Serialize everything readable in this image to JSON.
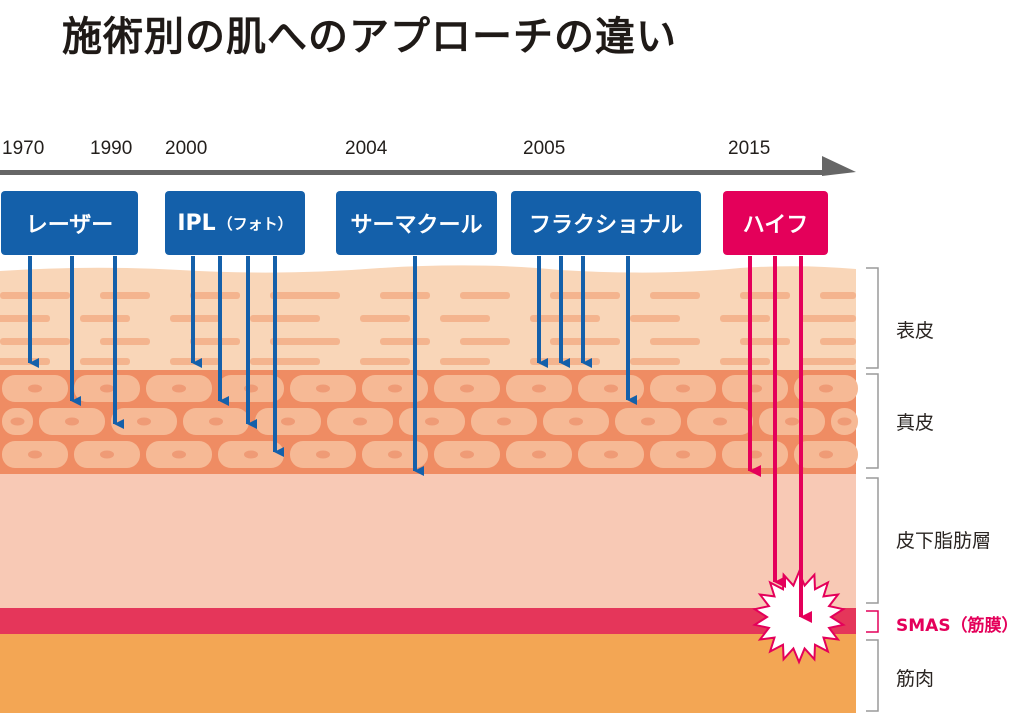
{
  "title": "施術別の肌へのアプローチの違い",
  "timeline": {
    "years": [
      {
        "id": "y1970",
        "label": "1970"
      },
      {
        "id": "y1990",
        "label": "1990"
      },
      {
        "id": "y2000",
        "label": "2000"
      },
      {
        "id": "y2004",
        "label": "2004"
      },
      {
        "id": "y2005",
        "label": "2005"
      },
      {
        "id": "y2015",
        "label": "2015"
      }
    ]
  },
  "treatments": [
    {
      "id": "laser",
      "label": "レーザー",
      "color": "#1460aa",
      "reaches": "真皮"
    },
    {
      "id": "ipl",
      "label": "IPL",
      "sub": "（フォト）",
      "color": "#1460aa",
      "reaches": "真皮"
    },
    {
      "id": "thermacool",
      "label": "サーマクール",
      "color": "#1460aa",
      "reaches": "真皮"
    },
    {
      "id": "fractional",
      "label": "フラクショナル",
      "color": "#1460aa",
      "reaches": "真皮"
    },
    {
      "id": "hifu",
      "label": "ハイフ",
      "color": "#e4005a",
      "reaches": "SMAS（筋膜）"
    }
  ],
  "layers": [
    {
      "id": "epidermis",
      "label": "表皮",
      "color": "#f9d6b8"
    },
    {
      "id": "dermis",
      "label": "真皮",
      "color": "#ef8c63"
    },
    {
      "id": "subcutaneous",
      "label": "皮下脂肪層",
      "color": "#f8c9b5"
    },
    {
      "id": "smas",
      "label": "SMAS（筋膜）",
      "color": "#e5365a"
    },
    {
      "id": "muscle",
      "label": "筋肉",
      "color": "#f3a654"
    }
  ],
  "colors": {
    "arrow_blue": "#1460aa",
    "arrow_pink": "#e4005a",
    "timeline": "#666666"
  }
}
